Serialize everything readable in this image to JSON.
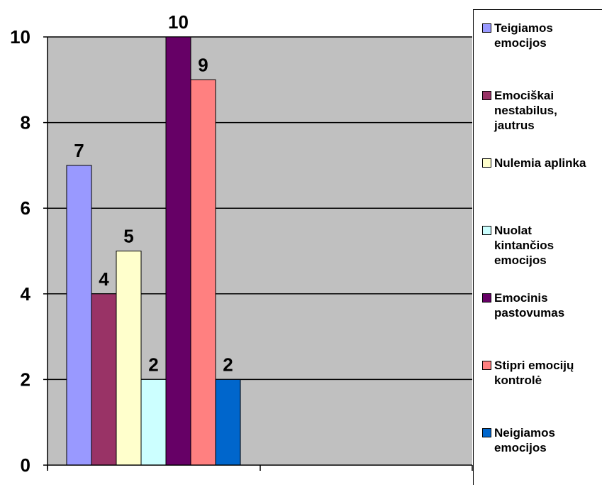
{
  "chart_data": {
    "type": "bar",
    "title": "",
    "xlabel": "",
    "ylabel": "",
    "ylim": [
      0,
      10
    ],
    "yticks": [
      "0",
      "2",
      "4",
      "6",
      "8",
      "10"
    ],
    "grid": true,
    "legend_position": "right",
    "plot_background": "#C0C0C0",
    "series": [
      {
        "name": "Teigiamos emocijos",
        "legend_text": "Teigiamos\nemocijos",
        "value": 7,
        "label": "7",
        "color": "#9999FF"
      },
      {
        "name": "Emociškai nestabilus, jautrus",
        "legend_text": "Emociškai\nnestabilus,\njautrus",
        "value": 4,
        "label": "4",
        "color": "#993366"
      },
      {
        "name": "Nulemia aplinka",
        "legend_text": "Nulemia aplinka",
        "value": 5,
        "label": "5",
        "color": "#FFFFCC"
      },
      {
        "name": "Nuolat kintančios emocijos",
        "legend_text": "Nuolat\nkintančios\nemocijos",
        "value": 2,
        "label": "2",
        "color": "#CCFFFF"
      },
      {
        "name": "Emocinis pastovumas",
        "legend_text": "Emocinis\npastovumas",
        "value": 10,
        "label": "10",
        "color": "#660066"
      },
      {
        "name": "Stipri emocijų kontrolė",
        "legend_text": "Stipri emocijų\nkontrolė",
        "value": 9,
        "label": "9",
        "color": "#FF8080"
      },
      {
        "name": "Neigiamos emocijos",
        "legend_text": "Neigiamos\nemocijos",
        "value": 2,
        "label": "2",
        "color": "#0066CC"
      }
    ]
  }
}
